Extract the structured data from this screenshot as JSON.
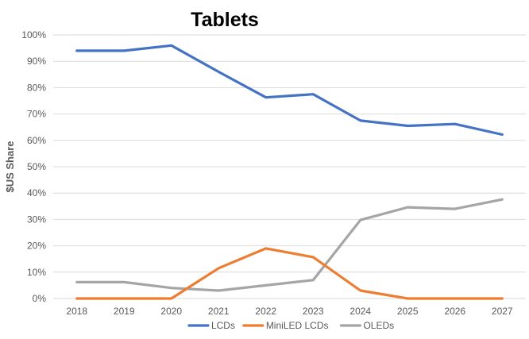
{
  "chart_data": {
    "type": "line",
    "title": "Tablets",
    "ylabel": "$US Share",
    "xlabel": "",
    "x": [
      "2018",
      "2019",
      "2020",
      "2021",
      "2022",
      "2023",
      "2024",
      "2025",
      "2026",
      "2027"
    ],
    "y_ticks": [
      "0%",
      "10%",
      "20%",
      "30%",
      "40%",
      "50%",
      "60%",
      "70%",
      "80%",
      "90%",
      "100%"
    ],
    "ylim": [
      0,
      100
    ],
    "grid": true,
    "legend_position": "bottom",
    "series": [
      {
        "name": "LCDs",
        "color": "#4472c4",
        "values": [
          94,
          94,
          96,
          86,
          76.3,
          77.5,
          67.5,
          65.5,
          66.2,
          62.2
        ]
      },
      {
        "name": "MiniLED LCDs",
        "color": "#ed7d31",
        "values": [
          0,
          0,
          0,
          11.5,
          19,
          15.7,
          3,
          0,
          0,
          0
        ]
      },
      {
        "name": "OLEDs",
        "color": "#a5a5a5",
        "values": [
          6.2,
          6.2,
          4,
          3,
          5,
          7,
          29.8,
          34.6,
          34,
          37.6
        ]
      }
    ]
  }
}
